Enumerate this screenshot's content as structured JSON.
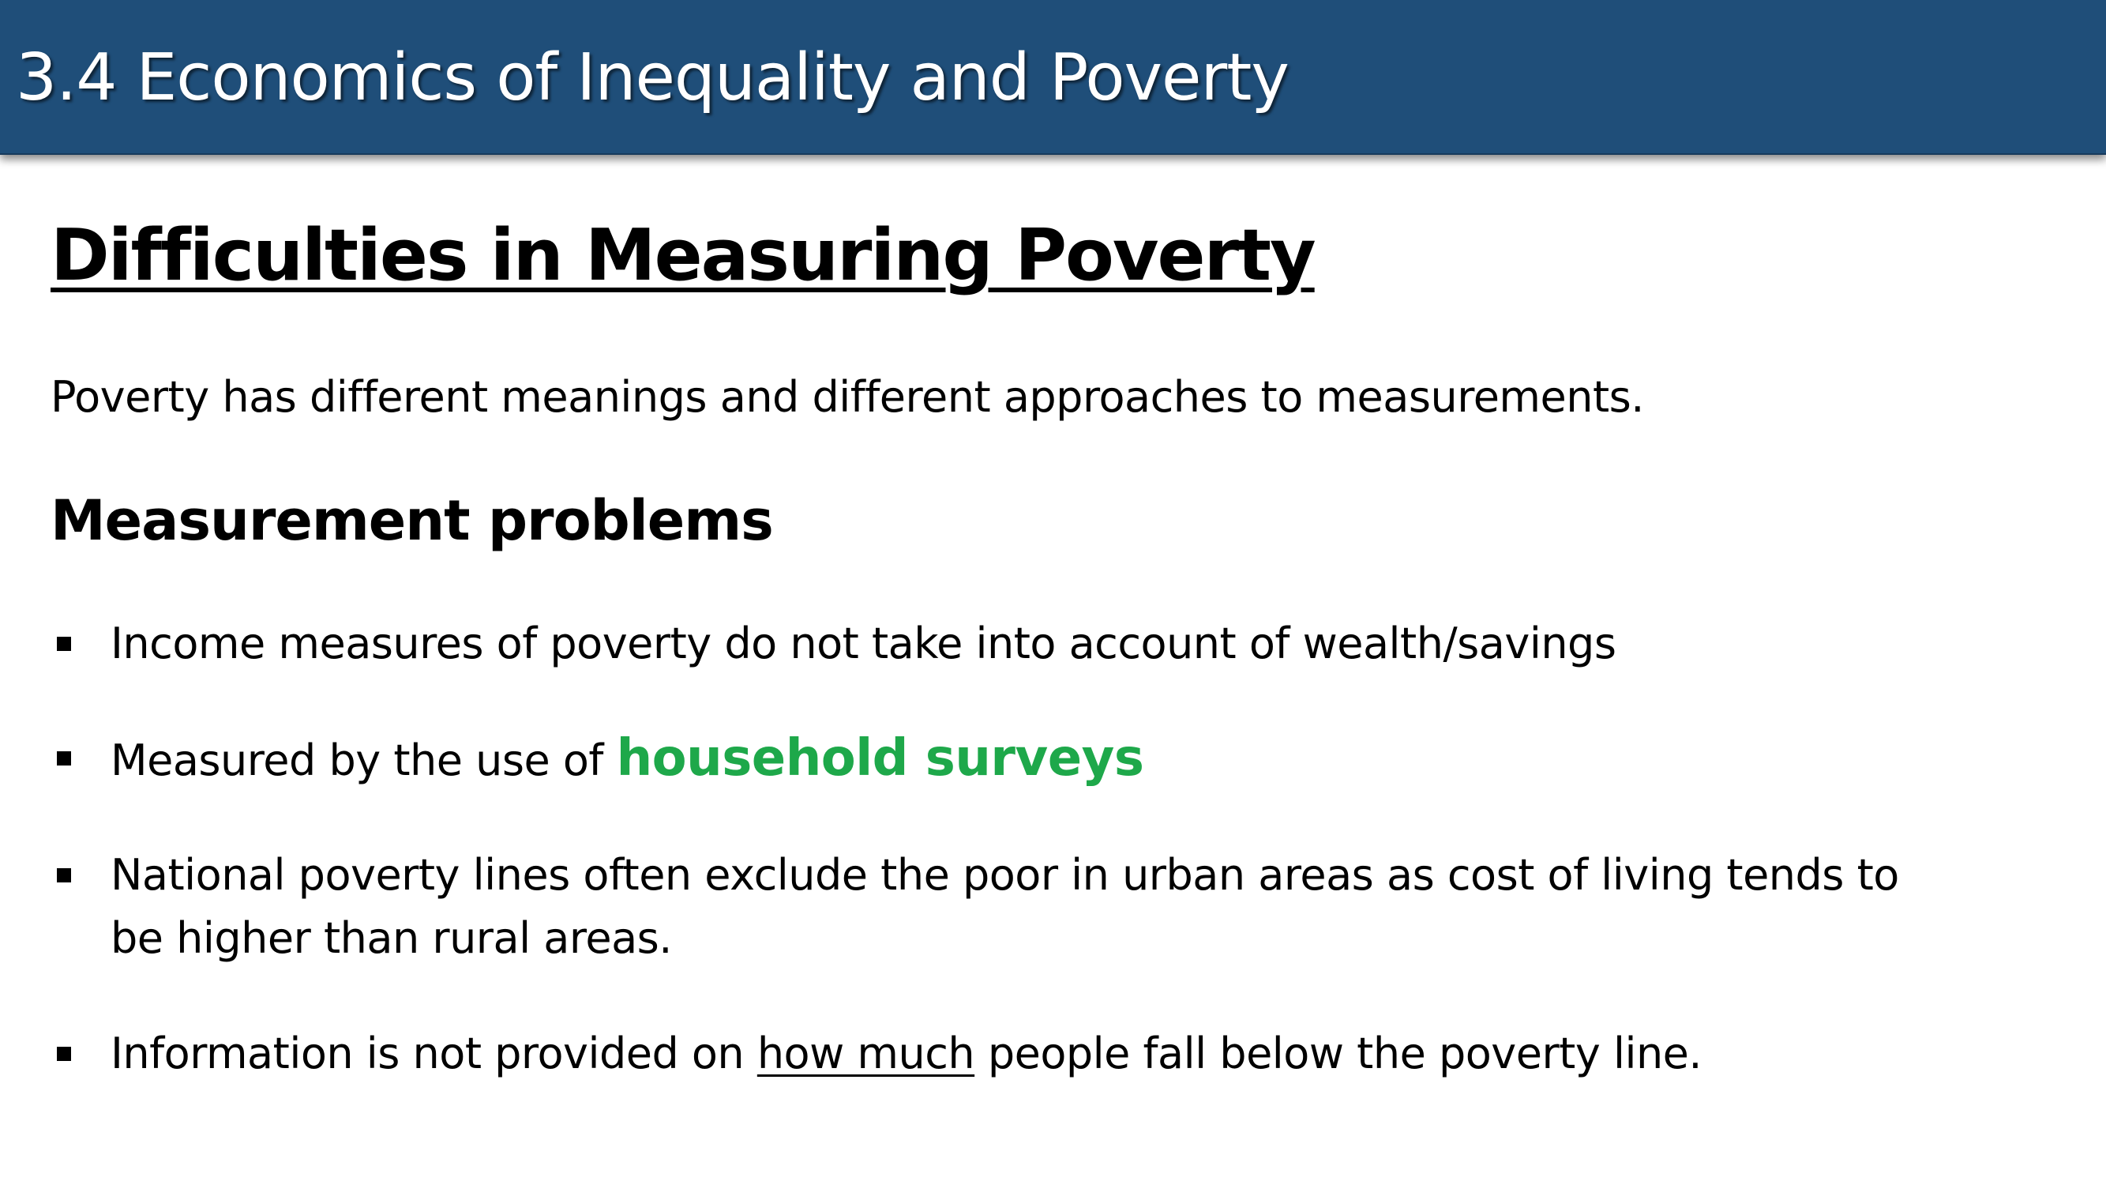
{
  "header": {
    "title": "3.4 Economics of Inequality and Poverty",
    "background_color": "#1f4e79"
  },
  "slide": {
    "heading": "Difficulties in Measuring Poverty",
    "intro": "Poverty has different meanings and different approaches to measurements.",
    "subheading": "Measurement problems"
  },
  "bullets": [
    {
      "text": "Income measures of poverty do not take into account of wealth/savings"
    },
    {
      "prefix": "Measured by the use of ",
      "highlight": "household surveys",
      "highlight_color": "#1ea84a"
    },
    {
      "line1": "National poverty lines often exclude the poor in urban areas as cost of living tends to",
      "line2": "be higher than rural areas."
    },
    {
      "prefix": "Information is not provided on ",
      "underlined": "how much",
      "suffix": " people fall below the poverty line."
    }
  ]
}
